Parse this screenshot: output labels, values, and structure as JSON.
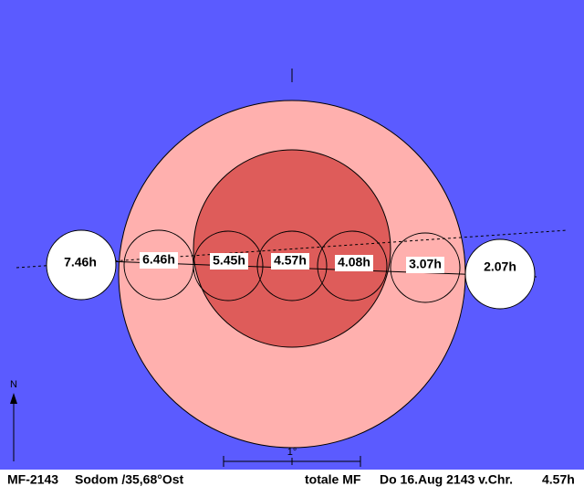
{
  "moons": [
    {
      "label": "7.46h"
    },
    {
      "label": "6.46h"
    },
    {
      "label": "5.45h"
    },
    {
      "label": "4.57h"
    },
    {
      "label": "4.08h"
    },
    {
      "label": "3.07h"
    },
    {
      "label": "2.07h"
    }
  ],
  "scale": {
    "label": "1°"
  },
  "north": "N",
  "footer": {
    "id": "MF-2143",
    "place": "Sodom /35,68°Ost",
    "kind": "totale MF",
    "date": "Do 16.Aug 2143 v.Chr.",
    "time": "4.57h"
  }
}
